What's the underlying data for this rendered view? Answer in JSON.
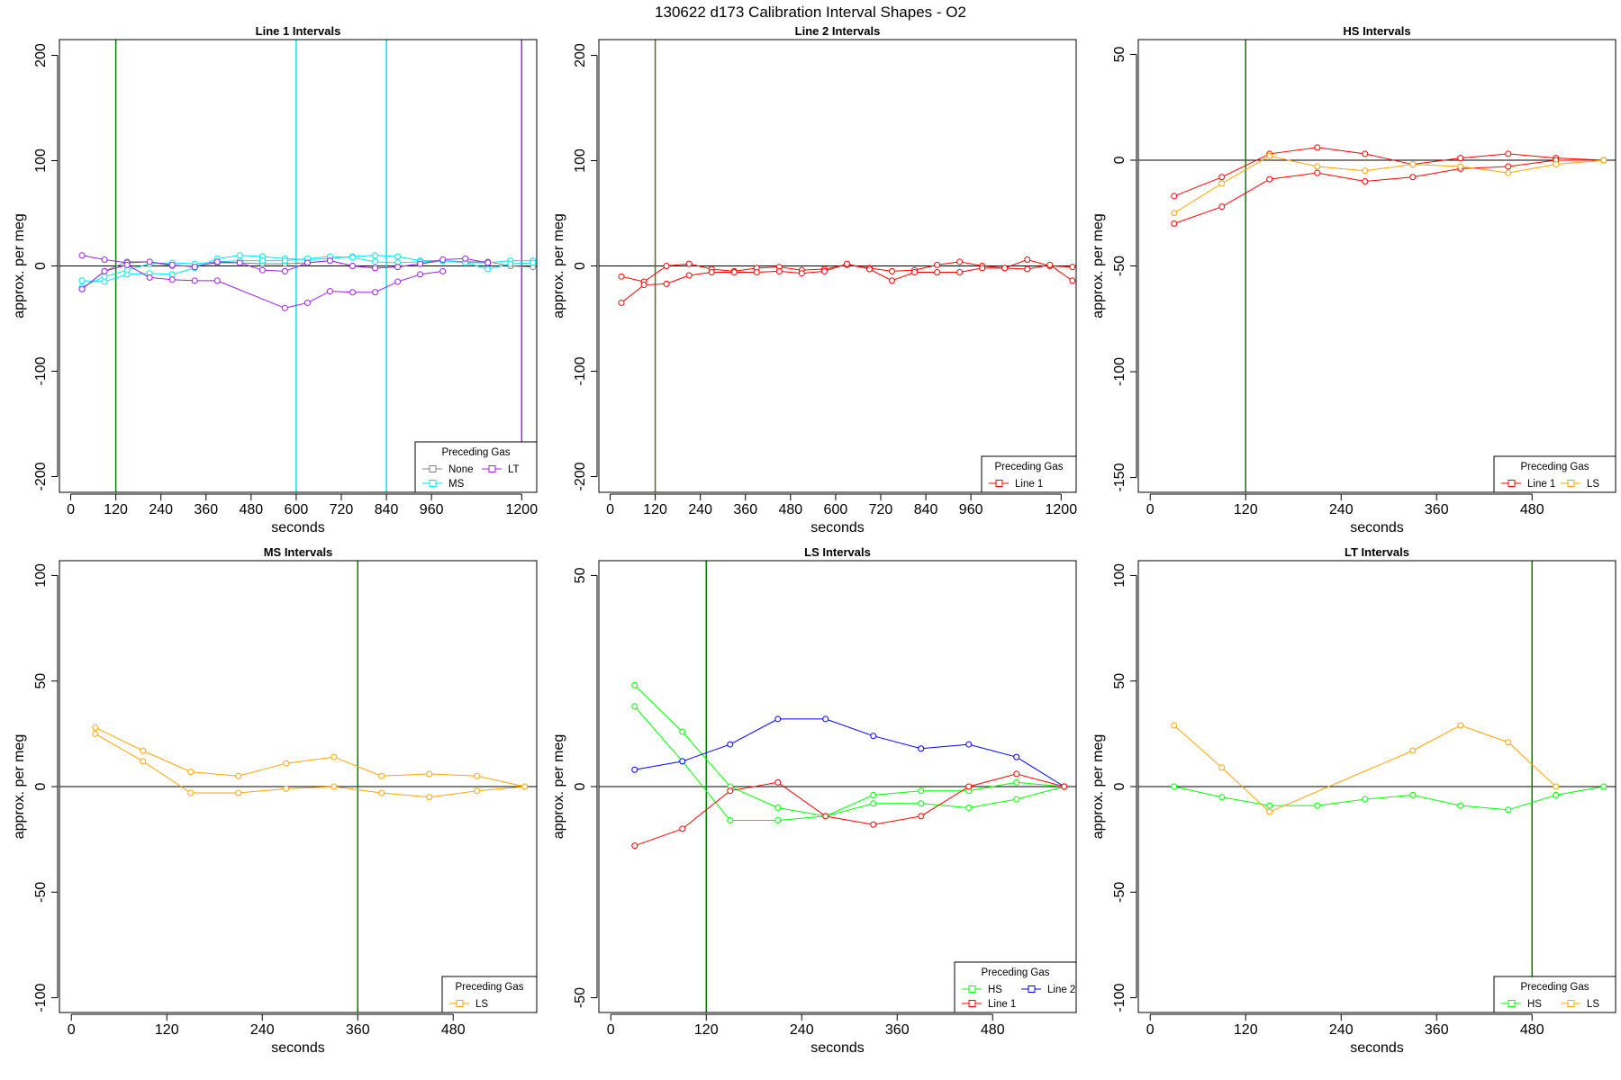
{
  "figure_title": "130622   d173   Calibration Interval Shapes - O2",
  "chart_data": [
    {
      "type": "line",
      "title": "Line 1 Intervals",
      "xlabel": "seconds",
      "ylabel": "approx. per meg",
      "xlim": [
        -30,
        1240
      ],
      "ylim": [
        -215,
        215
      ],
      "xticks": [
        0,
        120,
        240,
        360,
        480,
        600,
        720,
        840,
        960,
        1200
      ],
      "yticks": [
        -200,
        -100,
        0,
        100,
        200
      ],
      "hline": 0,
      "vlines": [
        {
          "x": 120,
          "color": "#008000"
        },
        {
          "x": 600,
          "color": "#00e5ee"
        },
        {
          "x": 840,
          "color": "#00e5ee"
        },
        {
          "x": 1200,
          "color": "#a020f0"
        }
      ],
      "legend": {
        "title": "Preceding Gas",
        "position": "bottom-right",
        "entries": [
          {
            "name": "None",
            "color": "#808080"
          },
          {
            "name": "LT",
            "color": "#a020f0"
          },
          {
            "name": "MS",
            "color": "#00e5ee"
          }
        ]
      },
      "series": [
        {
          "name": "None",
          "color": "#808080",
          "x": [
            30,
            90,
            150,
            210,
            270,
            330,
            390,
            450,
            510,
            570,
            630,
            690,
            750,
            810,
            870,
            930,
            990,
            1050,
            1110,
            1170,
            1230
          ],
          "y": [
            -22,
            -5,
            4,
            4,
            0,
            0,
            3,
            3,
            2,
            2,
            3,
            5,
            0,
            -2,
            -1,
            2,
            5,
            4,
            4,
            0,
            -1
          ]
        },
        {
          "name": "MS",
          "color": "#00e5ee",
          "x": [
            30,
            90,
            150,
            210,
            270,
            330,
            390,
            450,
            510,
            570,
            630,
            690,
            750,
            810,
            870,
            930,
            990,
            1050,
            1110,
            1170,
            1230
          ],
          "y": [
            -14,
            -15,
            -8,
            -7,
            -8,
            -2,
            7,
            10,
            9,
            7,
            6,
            7,
            9,
            10,
            9,
            5,
            5,
            3,
            3,
            5,
            5
          ]
        },
        {
          "name": "MS",
          "color": "#00e5ee",
          "x": [
            30,
            90,
            150,
            210,
            270,
            330,
            390,
            450,
            510,
            570,
            630,
            690,
            750,
            810,
            870,
            930,
            990,
            1050,
            1110,
            1170,
            1230
          ],
          "y": [
            -20,
            -10,
            -4,
            2,
            3,
            2,
            4,
            5,
            5,
            5,
            7,
            9,
            8,
            4,
            3,
            4,
            5,
            3,
            -3,
            2,
            3
          ]
        },
        {
          "name": "LT",
          "color": "#a020f0",
          "x": [
            30,
            90,
            150,
            210,
            270,
            330,
            390,
            450,
            510,
            570,
            630,
            690,
            750,
            810,
            870,
            930,
            990,
            1050,
            1110
          ],
          "y": [
            10,
            6,
            3,
            4,
            1,
            -1,
            4,
            3,
            -4,
            -5,
            3,
            5,
            0,
            -2,
            -1,
            2,
            6,
            7,
            3
          ]
        },
        {
          "name": "LT",
          "color": "#a020f0",
          "x": [
            30,
            90,
            150,
            210,
            270,
            330,
            390,
            570,
            630,
            690,
            750,
            810,
            870,
            930,
            990
          ],
          "y": [
            -22,
            -5,
            1,
            -11,
            -13,
            -14,
            -14,
            -40,
            -35,
            -24,
            -25,
            -25,
            -15,
            -8,
            -5
          ]
        }
      ]
    },
    {
      "type": "line",
      "title": "Line 2 Intervals",
      "xlabel": "seconds",
      "ylabel": "approx. per meg",
      "xlim": [
        -30,
        1240
      ],
      "ylim": [
        -215,
        215
      ],
      "xticks": [
        0,
        120,
        240,
        360,
        480,
        600,
        720,
        840,
        960,
        1200
      ],
      "yticks": [
        -200,
        -100,
        0,
        100,
        200
      ],
      "hline": 0,
      "vlines": [
        {
          "x": 120,
          "color": "#556b2f"
        }
      ],
      "legend": {
        "title": "Preceding Gas",
        "position": "bottom-right",
        "entries": [
          {
            "name": "Line 1",
            "color": "#ff0000"
          }
        ]
      },
      "series": [
        {
          "name": "Line 1",
          "color": "#ff0000",
          "x": [
            30,
            90,
            150,
            210,
            270,
            330,
            390,
            450,
            510,
            570,
            630,
            690,
            750,
            810,
            870,
            930,
            990,
            1050,
            1110,
            1170,
            1230
          ],
          "y": [
            -10,
            -15,
            0,
            2,
            -3,
            -5,
            -2,
            -1,
            -4,
            -3,
            1,
            -2,
            -5,
            -4,
            1,
            4,
            0,
            -2,
            6,
            0,
            -1
          ]
        },
        {
          "name": "Line 1",
          "color": "#ff0000",
          "x": [
            30,
            90,
            150,
            210,
            270,
            330,
            390,
            450,
            510,
            570,
            630,
            690,
            750,
            810,
            870,
            930,
            990,
            1050,
            1110,
            1170,
            1230
          ],
          "y": [
            -35,
            -18,
            -17,
            -9,
            -6,
            -6,
            -6,
            -5,
            -7,
            -5,
            2,
            -3,
            -14,
            -6,
            -6,
            -6,
            -2,
            -2,
            -3,
            1,
            -14
          ]
        }
      ]
    },
    {
      "type": "line",
      "title": "HS Intervals",
      "xlabel": "seconds",
      "ylabel": "approx. per meg",
      "xlim": [
        -15,
        585
      ],
      "ylim": [
        -157,
        57
      ],
      "xticks": [
        0,
        120,
        240,
        360,
        480
      ],
      "yticks": [
        -150,
        -100,
        -50,
        0,
        50
      ],
      "hline": 0,
      "vlines": [
        {
          "x": 120,
          "color": "#008000"
        }
      ],
      "legend": {
        "title": "Preceding Gas",
        "position": "bottom-right",
        "entries": [
          {
            "name": "Line 1",
            "color": "#ff0000"
          },
          {
            "name": "LS",
            "color": "#ffa500"
          }
        ]
      },
      "series": [
        {
          "name": "Line 1",
          "color": "#ff0000",
          "x": [
            30,
            90,
            150,
            210,
            270,
            330,
            390,
            450,
            510,
            570
          ],
          "y": [
            -17,
            -8,
            3,
            6,
            3,
            -2,
            1,
            3,
            1,
            0
          ]
        },
        {
          "name": "Line 1",
          "color": "#ff0000",
          "x": [
            30,
            90,
            150,
            210,
            270,
            330,
            390,
            450,
            510,
            570
          ],
          "y": [
            -30,
            -22,
            -9,
            -6,
            -10,
            -8,
            -4,
            -3,
            0,
            0
          ]
        },
        {
          "name": "LS",
          "color": "#ffa500",
          "x": [
            30,
            90,
            150,
            210,
            270,
            330,
            390,
            450,
            510,
            570
          ],
          "y": [
            -25,
            -11,
            2,
            -3,
            -5,
            -2,
            -3,
            -6,
            -2,
            0
          ]
        }
      ]
    },
    {
      "type": "line",
      "title": "MS Intervals",
      "xlabel": "seconds",
      "ylabel": "approx. per meg",
      "xlim": [
        -15,
        585
      ],
      "ylim": [
        -107,
        107
      ],
      "xticks": [
        0,
        120,
        240,
        360,
        480
      ],
      "yticks": [
        -100,
        -50,
        0,
        50,
        100
      ],
      "hline": 0,
      "vlines": [
        {
          "x": 360,
          "color": "#008000"
        }
      ],
      "legend": {
        "title": "Preceding Gas",
        "position": "bottom-right",
        "entries": [
          {
            "name": "LS",
            "color": "#ffa500"
          }
        ]
      },
      "series": [
        {
          "name": "LS",
          "color": "#ffa500",
          "x": [
            30,
            90,
            150,
            210,
            270,
            330,
            390,
            450,
            510,
            570
          ],
          "y": [
            28,
            17,
            7,
            5,
            11,
            14,
            5,
            6,
            5,
            0
          ]
        },
        {
          "name": "LS",
          "color": "#ffa500",
          "x": [
            30,
            90,
            150,
            210,
            270,
            330,
            390,
            450,
            510,
            570
          ],
          "y": [
            25,
            12,
            -3,
            -3,
            -1,
            0,
            -3,
            -5,
            -2,
            0
          ]
        }
      ]
    },
    {
      "type": "line",
      "title": "LS Intervals",
      "xlabel": "seconds",
      "ylabel": "approx. per meg",
      "xlim": [
        -15,
        585
      ],
      "ylim": [
        -53.5,
        53.5
      ],
      "xticks": [
        0,
        120,
        240,
        360,
        480
      ],
      "yticks": [
        -50,
        0,
        50
      ],
      "hline": 0,
      "vlines": [
        {
          "x": 120,
          "color": "#008000"
        }
      ],
      "legend": {
        "title": "Preceding Gas",
        "position": "bottom-right",
        "entries": [
          {
            "name": "HS",
            "color": "#00ff00"
          },
          {
            "name": "Line 2",
            "color": "#0000ff"
          },
          {
            "name": "Line 1",
            "color": "#ff0000"
          }
        ]
      },
      "series": [
        {
          "name": "HS",
          "color": "#00ff00",
          "x": [
            30,
            90,
            150,
            210,
            270,
            330,
            390,
            450,
            510,
            570
          ],
          "y": [
            24,
            13,
            0,
            -5,
            -7,
            -2,
            -1,
            -1,
            1,
            0
          ]
        },
        {
          "name": "HS",
          "color": "#00ff00",
          "x": [
            30,
            90,
            150,
            210,
            270,
            330,
            390,
            450,
            510,
            570
          ],
          "y": [
            19,
            6,
            -8,
            -8,
            -7,
            -4,
            -4,
            -5,
            -3,
            0
          ]
        },
        {
          "name": "Line 2",
          "color": "#0000ff",
          "x": [
            30,
            90,
            150,
            210,
            270,
            330,
            390,
            450,
            510,
            570
          ],
          "y": [
            4,
            6,
            10,
            16,
            16,
            12,
            9,
            10,
            7,
            0
          ]
        },
        {
          "name": "Line 1",
          "color": "#ff0000",
          "x": [
            30,
            90,
            150,
            210,
            270,
            330,
            390,
            450,
            510,
            570
          ],
          "y": [
            -14,
            -10,
            -1,
            1,
            -7,
            -9,
            -7,
            0,
            3,
            0
          ]
        }
      ]
    },
    {
      "type": "line",
      "title": "LT Intervals",
      "xlabel": "seconds",
      "ylabel": "approx. per meg",
      "xlim": [
        -15,
        585
      ],
      "ylim": [
        -107,
        107
      ],
      "xticks": [
        0,
        120,
        240,
        360,
        480
      ],
      "yticks": [
        -100,
        -50,
        0,
        50,
        100
      ],
      "hline": 0,
      "vlines": [
        {
          "x": 480,
          "color": "#008000"
        }
      ],
      "legend": {
        "title": "Preceding Gas",
        "position": "bottom-right",
        "entries": [
          {
            "name": "HS",
            "color": "#00ff00"
          },
          {
            "name": "LS",
            "color": "#ffa500"
          }
        ]
      },
      "series": [
        {
          "name": "HS",
          "color": "#00ff00",
          "x": [
            30,
            90,
            150,
            210,
            270,
            330,
            390,
            450,
            510,
            570
          ],
          "y": [
            0,
            -5,
            -9,
            -9,
            -6,
            -4,
            -9,
            -11,
            -4,
            0
          ]
        },
        {
          "name": "LS",
          "color": "#ffa500",
          "x": [
            30,
            90,
            150,
            330,
            390,
            450,
            510
          ],
          "y": [
            29,
            9,
            -12,
            17,
            29,
            21,
            0
          ]
        }
      ]
    }
  ]
}
